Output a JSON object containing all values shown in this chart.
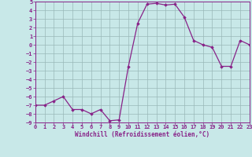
{
  "x": [
    0,
    1,
    2,
    3,
    4,
    5,
    6,
    7,
    8,
    9,
    10,
    11,
    12,
    13,
    14,
    15,
    16,
    17,
    18,
    19,
    20,
    21,
    22,
    23
  ],
  "y": [
    -7,
    -7,
    -6.5,
    -6,
    -7.5,
    -7.5,
    -8,
    -7.5,
    -8.8,
    -8.7,
    -2.5,
    2.5,
    4.7,
    4.8,
    4.6,
    4.7,
    3.2,
    0.5,
    0.0,
    -0.3,
    -2.5,
    -2.5,
    0.5,
    0.0
  ],
  "line_color": "#882288",
  "marker": "D",
  "marker_size": 1.8,
  "linewidth": 0.9,
  "bg_color": "#c8e8e8",
  "grid_color": "#9ab8b8",
  "xlabel": "Windchill (Refroidissement éolien,°C)",
  "xlabel_color": "#882288",
  "tick_color": "#882288",
  "ylim": [
    -9,
    5
  ],
  "xlim": [
    0,
    23
  ],
  "yticks": [
    -9,
    -8,
    -7,
    -6,
    -5,
    -4,
    -3,
    -2,
    -1,
    0,
    1,
    2,
    3,
    4,
    5
  ],
  "xticks": [
    0,
    1,
    2,
    3,
    4,
    5,
    6,
    7,
    8,
    9,
    10,
    11,
    12,
    13,
    14,
    15,
    16,
    17,
    18,
    19,
    20,
    21,
    22,
    23
  ],
  "xlabel_fontsize": 5.5,
  "tick_fontsize": 5.0
}
